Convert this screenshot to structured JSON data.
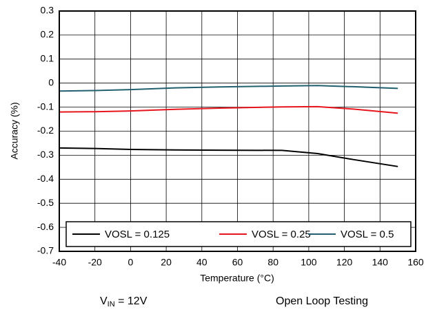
{
  "chart_data": {
    "type": "line",
    "xlabel": "Temperature (°C)",
    "ylabel": "Accuracy (%)",
    "x": [
      -40,
      -20,
      0,
      25,
      50,
      85,
      105,
      125,
      150
    ],
    "series": [
      {
        "name": "VOSL = 0.125",
        "color": "#000000",
        "values": [
          -0.27,
          -0.272,
          -0.276,
          -0.278,
          -0.279,
          -0.28,
          -0.293,
          -0.318,
          -0.347
        ]
      },
      {
        "name": "VOSL = 0.25",
        "color": "#e8141b",
        "values": [
          -0.12,
          -0.119,
          -0.116,
          -0.109,
          -0.104,
          -0.099,
          -0.098,
          -0.108,
          -0.125
        ]
      },
      {
        "name": "VOSL = 0.5",
        "color": "#1f5f6e",
        "values": [
          -0.033,
          -0.031,
          -0.027,
          -0.02,
          -0.016,
          -0.012,
          -0.01,
          -0.015,
          -0.022
        ]
      }
    ],
    "xlim": [
      -40,
      160
    ],
    "xticks": [
      -40,
      -20,
      0,
      20,
      40,
      60,
      80,
      100,
      120,
      140,
      160
    ],
    "ylim": [
      -0.7,
      0.3
    ],
    "yticks": [
      0.3,
      0.2,
      0.1,
      0,
      -0.1,
      -0.2,
      -0.3,
      -0.4,
      -0.5,
      -0.6,
      -0.7
    ],
    "grid": true,
    "legend": "lower center",
    "condition": {
      "symbol": "V",
      "subscript": "IN",
      "text": " = 12V"
    },
    "note": "Open Loop Testing"
  }
}
